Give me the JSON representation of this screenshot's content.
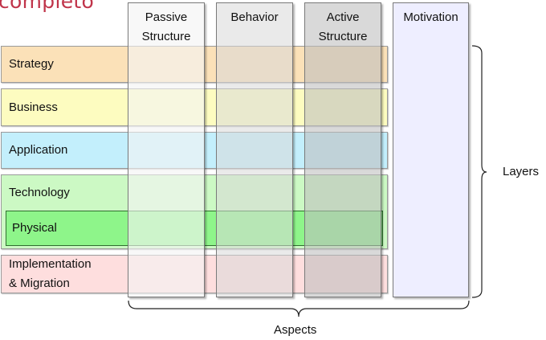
{
  "header_word": "completo",
  "layers": [
    {
      "id": "strategy",
      "label": "Strategy",
      "color": "#fbe1b8"
    },
    {
      "id": "business",
      "label": "Business",
      "color": "#fdfcc0"
    },
    {
      "id": "application",
      "label": "Application",
      "color": "#c3effc"
    },
    {
      "id": "technology",
      "label": "Technology",
      "color": "#ccf9c4"
    },
    {
      "id": "physical",
      "label": "Physical",
      "color": "#8ef58a"
    },
    {
      "id": "implementation",
      "label_line1": "Implementation",
      "label_line2": "& Migration",
      "color": "#fedede"
    }
  ],
  "aspects": [
    {
      "id": "passive",
      "title_line1": "Passive",
      "title_line2": "Structure"
    },
    {
      "id": "behavior",
      "title_line1": "Behavior",
      "title_line2": ""
    },
    {
      "id": "active",
      "title_line1": "Active",
      "title_line2": "Structure"
    },
    {
      "id": "motivation",
      "title_line1": "Motivation",
      "title_line2": "",
      "color": "#eeeeff"
    }
  ],
  "brackets": {
    "layers": "Layers",
    "aspects": "Aspects"
  }
}
